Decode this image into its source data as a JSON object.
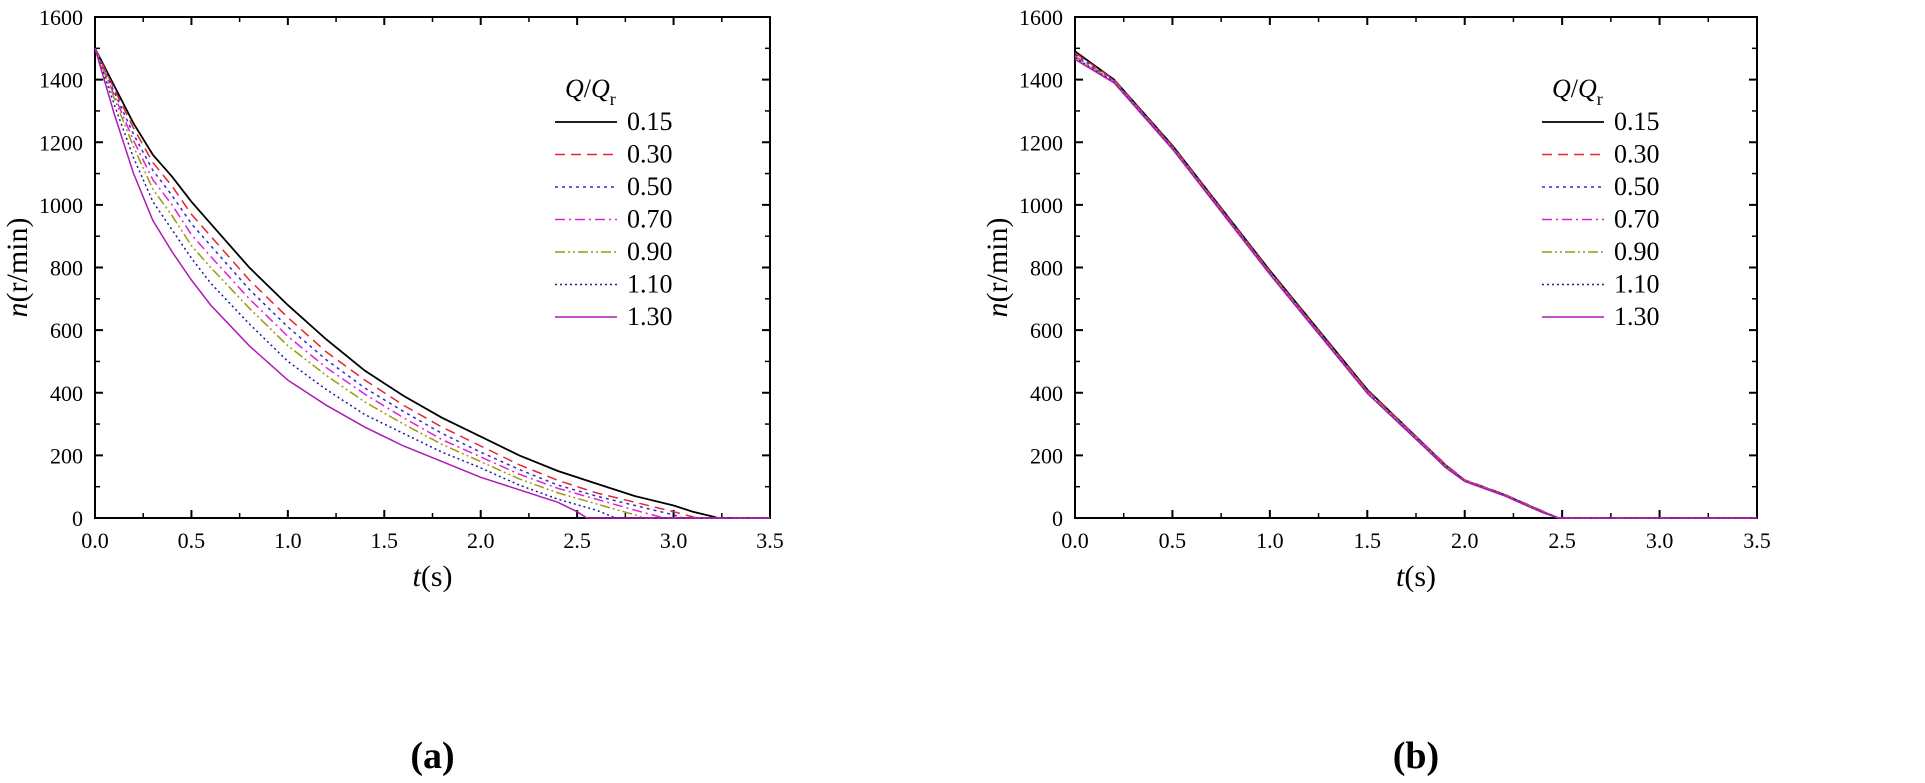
{
  "colors": {
    "0.15": "#000000",
    "0.30": "#e8262a",
    "0.50": "#2b2bd6",
    "0.70": "#e020d8",
    "0.90": "#9a9a10",
    "1.10": "#1a1aa0",
    "1.30": "#b01ab4"
  },
  "chart_data": [
    {
      "type": "line",
      "panel_label": "(a)",
      "xlabel_italic": "t",
      "xlabel_unit": "(s)",
      "ylabel_italic": "n",
      "ylabel_unit": "(r/min)",
      "xlim": [
        0,
        3.5
      ],
      "ylim": [
        0,
        1600
      ],
      "xticks": [
        "0.0",
        "0.5",
        "1.0",
        "1.5",
        "2.0",
        "2.5",
        "3.0",
        "3.5"
      ],
      "yticks": [
        "0",
        "200",
        "400",
        "600",
        "800",
        "1000",
        "1200",
        "1400",
        "1600"
      ],
      "grid": false,
      "legend_position": "top-right",
      "legend_title_italic_1": "Q",
      "legend_title_sep": "/",
      "legend_title_italic_2": "Q",
      "legend_title_sub": "r",
      "series": [
        {
          "name": "0.15",
          "style": "solid",
          "x": [
            0,
            0.1,
            0.2,
            0.3,
            0.4,
            0.5,
            0.6,
            0.8,
            1.0,
            1.2,
            1.4,
            1.6,
            1.8,
            2.0,
            2.2,
            2.4,
            2.6,
            2.8,
            3.0,
            3.1,
            3.2,
            3.23,
            3.5
          ],
          "y": [
            1500,
            1380,
            1260,
            1160,
            1090,
            1010,
            940,
            800,
            680,
            570,
            470,
            390,
            320,
            260,
            200,
            150,
            110,
            70,
            40,
            20,
            5,
            0,
            0
          ]
        },
        {
          "name": "0.30",
          "style": "dashed",
          "x": [
            0,
            0.1,
            0.2,
            0.3,
            0.4,
            0.5,
            0.6,
            0.8,
            1.0,
            1.2,
            1.4,
            1.6,
            1.8,
            2.0,
            2.2,
            2.4,
            2.6,
            2.8,
            3.0,
            3.12,
            3.5
          ],
          "y": [
            1500,
            1370,
            1245,
            1135,
            1060,
            970,
            900,
            760,
            640,
            530,
            440,
            360,
            290,
            230,
            170,
            120,
            80,
            50,
            20,
            0,
            0
          ]
        },
        {
          "name": "0.50",
          "style": "dotted",
          "x": [
            0,
            0.1,
            0.2,
            0.3,
            0.4,
            0.5,
            0.6,
            0.8,
            1.0,
            1.2,
            1.4,
            1.6,
            1.8,
            2.0,
            2.2,
            2.4,
            2.6,
            2.8,
            3.0,
            3.05,
            3.5
          ],
          "y": [
            1500,
            1360,
            1225,
            1110,
            1030,
            940,
            870,
            730,
            610,
            505,
            415,
            340,
            270,
            210,
            155,
            105,
            70,
            40,
            10,
            0,
            0
          ]
        },
        {
          "name": "0.70",
          "style": "dashdot",
          "x": [
            0,
            0.1,
            0.2,
            0.3,
            0.4,
            0.5,
            0.6,
            0.8,
            1.0,
            1.2,
            1.4,
            1.6,
            1.8,
            2.0,
            2.2,
            2.4,
            2.6,
            2.8,
            2.95,
            3.5
          ],
          "y": [
            1500,
            1350,
            1205,
            1080,
            1000,
            905,
            835,
            700,
            580,
            480,
            395,
            320,
            250,
            195,
            140,
            95,
            60,
            25,
            0,
            0
          ]
        },
        {
          "name": "0.90",
          "style": "dashdotdot",
          "x": [
            0,
            0.1,
            0.2,
            0.3,
            0.4,
            0.5,
            0.6,
            0.8,
            1.0,
            1.2,
            1.4,
            1.6,
            1.8,
            2.0,
            2.2,
            2.4,
            2.6,
            2.8,
            2.85,
            3.5
          ],
          "y": [
            1500,
            1340,
            1185,
            1050,
            965,
            870,
            800,
            670,
            550,
            455,
            370,
            300,
            235,
            180,
            125,
            80,
            45,
            10,
            0,
            0
          ]
        },
        {
          "name": "1.10",
          "style": "shortdot",
          "x": [
            0,
            0.1,
            0.2,
            0.3,
            0.4,
            0.5,
            0.6,
            0.8,
            1.0,
            1.2,
            1.4,
            1.6,
            1.8,
            2.0,
            2.2,
            2.4,
            2.6,
            2.7,
            3.5
          ],
          "y": [
            1500,
            1320,
            1150,
            1010,
            920,
            830,
            750,
            620,
            500,
            410,
            330,
            270,
            210,
            160,
            105,
            60,
            25,
            0,
            0
          ]
        },
        {
          "name": "1.30",
          "style": "solidthin",
          "x": [
            0,
            0.1,
            0.2,
            0.3,
            0.4,
            0.5,
            0.6,
            0.8,
            1.0,
            1.2,
            1.4,
            1.6,
            1.8,
            2.0,
            2.2,
            2.4,
            2.5,
            2.55,
            3.5
          ],
          "y": [
            1500,
            1290,
            1100,
            950,
            850,
            760,
            680,
            550,
            440,
            360,
            290,
            230,
            180,
            130,
            90,
            50,
            20,
            0,
            0
          ]
        }
      ]
    },
    {
      "type": "line",
      "panel_label": "(b)",
      "xlabel_italic": "t",
      "xlabel_unit": "(s)",
      "ylabel_italic": "n",
      "ylabel_unit": "(r/min)",
      "xlim": [
        0,
        3.5
      ],
      "ylim": [
        0,
        1600
      ],
      "xticks": [
        "0.0",
        "0.5",
        "1.0",
        "1.5",
        "2.0",
        "2.5",
        "3.0",
        "3.5"
      ],
      "yticks": [
        "0",
        "200",
        "400",
        "600",
        "800",
        "1000",
        "1200",
        "1400",
        "1600"
      ],
      "grid": false,
      "legend_position": "top-right",
      "legend_title_italic_1": "Q",
      "legend_title_sep": "/",
      "legend_title_italic_2": "Q",
      "legend_title_sub": "r",
      "series": [
        {
          "name": "0.15",
          "style": "solid",
          "x": [
            0,
            0.2,
            0.5,
            1.0,
            1.5,
            1.8,
            1.9,
            2.0,
            2.2,
            2.4,
            2.48,
            3.5
          ],
          "y": [
            1490,
            1400,
            1190,
            790,
            410,
            230,
            170,
            120,
            75,
            20,
            0,
            0
          ]
        },
        {
          "name": "0.30",
          "style": "dashed",
          "x": [
            0,
            0.2,
            0.5,
            1.0,
            1.5,
            1.8,
            1.9,
            2.0,
            2.2,
            2.4,
            2.48,
            3.5
          ],
          "y": [
            1485,
            1400,
            1188,
            788,
            408,
            232,
            172,
            122,
            77,
            22,
            0,
            0
          ]
        },
        {
          "name": "0.50",
          "style": "dotted",
          "x": [
            0,
            0.2,
            0.5,
            1.0,
            1.5,
            1.8,
            1.9,
            2.0,
            2.2,
            2.4,
            2.48,
            3.5
          ],
          "y": [
            1480,
            1398,
            1186,
            786,
            406,
            230,
            170,
            121,
            76,
            21,
            0,
            0
          ]
        },
        {
          "name": "0.70",
          "style": "dashdot",
          "x": [
            0,
            0.2,
            0.5,
            1.0,
            1.5,
            1.8,
            1.9,
            2.0,
            2.2,
            2.4,
            2.48,
            3.5
          ],
          "y": [
            1475,
            1396,
            1184,
            784,
            404,
            228,
            168,
            120,
            75,
            20,
            0,
            0
          ]
        },
        {
          "name": "0.90",
          "style": "dashdotdot",
          "x": [
            0,
            0.2,
            0.5,
            1.0,
            1.5,
            1.8,
            1.9,
            2.0,
            2.2,
            2.4,
            2.48,
            3.5
          ],
          "y": [
            1472,
            1394,
            1182,
            782,
            402,
            226,
            166,
            119,
            74,
            19,
            0,
            0
          ]
        },
        {
          "name": "1.10",
          "style": "shortdot",
          "x": [
            0,
            0.2,
            0.5,
            1.0,
            1.5,
            1.8,
            1.9,
            2.0,
            2.2,
            2.4,
            2.48,
            3.5
          ],
          "y": [
            1470,
            1392,
            1180,
            780,
            400,
            224,
            164,
            118,
            73,
            18,
            0,
            0
          ]
        },
        {
          "name": "1.30",
          "style": "solidthin",
          "x": [
            0,
            0.2,
            0.5,
            1.0,
            1.5,
            1.8,
            1.9,
            2.0,
            2.2,
            2.4,
            2.48,
            3.5
          ],
          "y": [
            1465,
            1390,
            1178,
            778,
            398,
            222,
            162,
            117,
            72,
            17,
            0,
            0
          ]
        }
      ]
    }
  ]
}
